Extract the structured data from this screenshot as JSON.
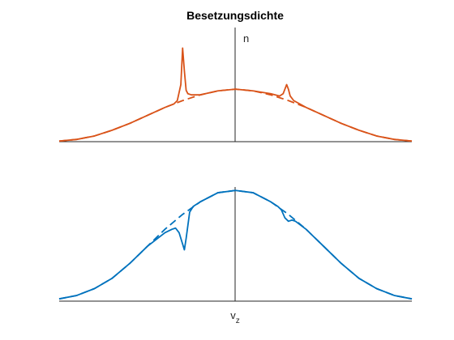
{
  "chart_data": [
    {
      "type": "line",
      "title": "Besetzungsdichte",
      "ylabel": "n",
      "xlabel": "",
      "xlim": [
        -1,
        1
      ],
      "ylim": [
        0,
        1
      ],
      "grid": false,
      "series": [
        {
          "color": "#D95319",
          "style": "dashed",
          "x": [
            -1.0,
            -0.9,
            -0.8,
            -0.7,
            -0.6,
            -0.5,
            -0.4,
            -0.3,
            -0.2,
            -0.1,
            0.0,
            0.1,
            0.2,
            0.3,
            0.4,
            0.5,
            0.6,
            0.7,
            0.8,
            0.9,
            1.0
          ],
          "y": [
            0.005,
            0.02,
            0.05,
            0.1,
            0.16,
            0.23,
            0.3,
            0.36,
            0.41,
            0.445,
            0.46,
            0.445,
            0.41,
            0.36,
            0.3,
            0.23,
            0.16,
            0.1,
            0.05,
            0.02,
            0.005
          ]
        },
        {
          "color": "#D95319",
          "style": "solid",
          "x": [
            -1.0,
            -0.9,
            -0.8,
            -0.7,
            -0.6,
            -0.5,
            -0.4,
            -0.35,
            -0.33,
            -0.31,
            -0.3,
            -0.29,
            -0.28,
            -0.27,
            -0.25,
            -0.2,
            -0.1,
            0.0,
            0.1,
            0.2,
            0.25,
            0.27,
            0.28,
            0.29,
            0.3,
            0.31,
            0.33,
            0.4,
            0.5,
            0.6,
            0.7,
            0.8,
            0.9,
            1.0
          ],
          "y": [
            0.005,
            0.02,
            0.05,
            0.1,
            0.16,
            0.23,
            0.3,
            0.33,
            0.36,
            0.5,
            0.82,
            0.62,
            0.45,
            0.42,
            0.41,
            0.41,
            0.445,
            0.46,
            0.445,
            0.42,
            0.4,
            0.42,
            0.46,
            0.5,
            0.46,
            0.4,
            0.36,
            0.3,
            0.23,
            0.16,
            0.1,
            0.05,
            0.02,
            0.005
          ]
        }
      ]
    },
    {
      "type": "line",
      "title": "",
      "ylabel": "",
      "xlabel": "v",
      "xlabel_sub": "z",
      "xlim": [
        -1,
        1
      ],
      "ylim": [
        0,
        1
      ],
      "grid": false,
      "series": [
        {
          "color": "#0072BD",
          "style": "dashed",
          "x": [
            -1.0,
            -0.9,
            -0.8,
            -0.7,
            -0.6,
            -0.5,
            -0.4,
            -0.3,
            -0.2,
            -0.1,
            0.0,
            0.1,
            0.2,
            0.3,
            0.4,
            0.5,
            0.6,
            0.7,
            0.8,
            0.9,
            1.0
          ],
          "y": [
            0.02,
            0.05,
            0.11,
            0.2,
            0.33,
            0.48,
            0.63,
            0.76,
            0.87,
            0.95,
            0.97,
            0.95,
            0.87,
            0.76,
            0.63,
            0.48,
            0.33,
            0.2,
            0.11,
            0.05,
            0.02
          ]
        },
        {
          "color": "#0072BD",
          "style": "solid",
          "x": [
            -1.0,
            -0.9,
            -0.8,
            -0.7,
            -0.6,
            -0.5,
            -0.4,
            -0.36,
            -0.34,
            -0.32,
            -0.3,
            -0.29,
            -0.28,
            -0.26,
            -0.24,
            -0.2,
            -0.1,
            0.0,
            0.1,
            0.2,
            0.24,
            0.26,
            0.28,
            0.3,
            0.32,
            0.34,
            0.4,
            0.5,
            0.6,
            0.7,
            0.8,
            0.9,
            1.0
          ],
          "y": [
            0.02,
            0.05,
            0.11,
            0.2,
            0.33,
            0.48,
            0.6,
            0.63,
            0.64,
            0.6,
            0.5,
            0.45,
            0.55,
            0.78,
            0.83,
            0.87,
            0.95,
            0.97,
            0.95,
            0.87,
            0.83,
            0.8,
            0.73,
            0.7,
            0.71,
            0.7,
            0.63,
            0.48,
            0.33,
            0.2,
            0.11,
            0.05,
            0.02
          ]
        }
      ]
    }
  ]
}
